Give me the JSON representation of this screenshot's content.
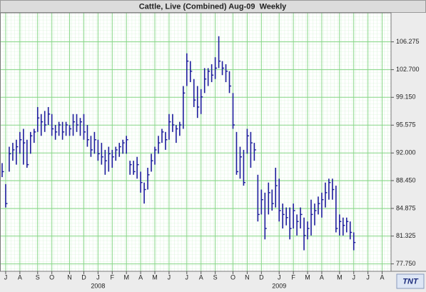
{
  "chart_data": {
    "type": "ohlc",
    "title": "Cattle, Live (Combined) Aug-09  Weekly",
    "logo": "TNT",
    "color": "#1c1c9c",
    "grid": true,
    "ylim": [
      76.8,
      110.0
    ],
    "yticks": [
      {
        "value": 77.75,
        "label": "77.750"
      },
      {
        "value": 81.325,
        "label": "81.325"
      },
      {
        "value": 84.875,
        "label": "84.875"
      },
      {
        "value": 88.45,
        "label": "88.450"
      },
      {
        "value": 92.0,
        "label": "92.000"
      },
      {
        "value": 95.575,
        "label": "95.575"
      },
      {
        "value": 99.15,
        "label": "99.150"
      },
      {
        "value": 102.7,
        "label": "102.700"
      },
      {
        "value": 106.275,
        "label": "106.275"
      }
    ],
    "year_labels": [
      "2008",
      "2009"
    ],
    "categories": [
      null,
      "J",
      null,
      null,
      null,
      "A",
      null,
      null,
      null,
      null,
      "S",
      null,
      null,
      null,
      "O",
      null,
      null,
      null,
      null,
      "N",
      null,
      null,
      null,
      "D",
      null,
      null,
      null,
      "J",
      null,
      null,
      null,
      "F",
      null,
      null,
      null,
      "M",
      null,
      null,
      null,
      "A",
      null,
      null,
      null,
      "M",
      null,
      null,
      null,
      "J",
      null,
      null,
      null,
      null,
      "J",
      null,
      null,
      null,
      "A",
      null,
      null,
      null,
      "S",
      null,
      null,
      null,
      null,
      "O",
      null,
      null,
      null,
      "N",
      null,
      null,
      null,
      "D",
      null,
      null,
      null,
      null,
      "J",
      null,
      null,
      null,
      "F",
      null,
      null,
      null,
      "M",
      null,
      null,
      null,
      "A",
      null,
      null,
      null,
      null,
      "M",
      null,
      null,
      null,
      "J",
      null,
      null,
      null,
      "J",
      null,
      null,
      null,
      "A",
      null,
      null
    ],
    "high": [
      90.7,
      88.0,
      92.8,
      93.3,
      93.7,
      94.7,
      95.1,
      93.7,
      94.7,
      95.1,
      97.9,
      97.0,
      97.4,
      97.9,
      97.0,
      95.6,
      96.0,
      96.0,
      96.0,
      95.6,
      97.0,
      97.0,
      96.5,
      97.0,
      95.6,
      94.2,
      94.7,
      93.7,
      93.3,
      92.4,
      92.8,
      92.4,
      92.8,
      93.3,
      93.7,
      94.2,
      91.0,
      91.0,
      91.5,
      89.6,
      88.2,
      90.1,
      91.9,
      92.8,
      94.2,
      95.1,
      94.7,
      97.0,
      97.0,
      95.6,
      96.0,
      100.6,
      104.8,
      103.8,
      101.5,
      100.6,
      100.2,
      102.9,
      102.9,
      103.4,
      104.3,
      107.0,
      103.8,
      103.4,
      102.5,
      99.7,
      94.7,
      92.8,
      92.4,
      95.1,
      94.7,
      93.3,
      89.2,
      87.3,
      86.9,
      88.2,
      87.3,
      90.1,
      88.7,
      85.5,
      85.0,
      85.0,
      85.5,
      84.1,
      85.0,
      83.7,
      83.2,
      86.0,
      85.5,
      86.4,
      86.9,
      88.2,
      88.7,
      88.7,
      87.8,
      84.1,
      83.7,
      83.7,
      83.2,
      81.8,
      null,
      null,
      null,
      null,
      null,
      null,
      null,
      null,
      null,
      null
    ],
    "low": [
      88.9,
      85.0,
      89.6,
      91.0,
      90.5,
      91.9,
      90.5,
      90.1,
      91.9,
      93.3,
      94.7,
      94.2,
      94.7,
      95.6,
      94.2,
      93.7,
      94.2,
      93.7,
      94.2,
      94.2,
      94.2,
      94.7,
      94.2,
      93.7,
      92.8,
      91.5,
      91.9,
      91.0,
      90.5,
      89.2,
      89.6,
      90.1,
      91.0,
      91.5,
      91.9,
      91.9,
      89.2,
      89.2,
      88.7,
      86.9,
      85.5,
      87.3,
      89.6,
      90.5,
      91.9,
      93.3,
      92.4,
      93.7,
      94.7,
      93.3,
      94.2,
      95.1,
      100.6,
      101.1,
      97.9,
      96.5,
      97.0,
      99.7,
      100.6,
      101.1,
      101.5,
      102.9,
      102.0,
      101.1,
      99.7,
      95.1,
      89.2,
      88.7,
      87.8,
      91.9,
      90.1,
      91.0,
      83.2,
      84.1,
      80.9,
      84.1,
      84.6,
      85.0,
      83.2,
      82.3,
      82.7,
      80.9,
      82.3,
      81.4,
      82.3,
      79.5,
      80.9,
      81.4,
      82.7,
      84.1,
      83.7,
      85.0,
      86.0,
      86.0,
      81.8,
      81.4,
      81.4,
      81.8,
      80.9,
      79.5,
      null,
      null,
      null,
      null,
      null,
      null,
      null,
      null,
      null,
      null
    ],
    "close": [
      89.6,
      85.5,
      91.9,
      92.4,
      92.8,
      93.7,
      93.3,
      90.5,
      94.2,
      94.7,
      96.5,
      96.0,
      95.6,
      97.0,
      95.1,
      94.7,
      95.6,
      94.7,
      95.6,
      95.1,
      96.0,
      95.6,
      96.0,
      94.7,
      93.7,
      92.4,
      93.7,
      91.9,
      91.5,
      91.0,
      91.9,
      91.5,
      92.4,
      92.8,
      93.3,
      93.7,
      90.5,
      89.6,
      90.5,
      88.2,
      87.3,
      89.2,
      91.0,
      92.4,
      93.3,
      94.7,
      93.7,
      96.0,
      95.6,
      95.1,
      95.6,
      99.7,
      103.8,
      102.5,
      98.8,
      97.9,
      99.2,
      101.5,
      102.5,
      102.0,
      102.9,
      103.8,
      102.9,
      102.5,
      100.6,
      95.6,
      89.6,
      91.5,
      88.2,
      94.2,
      93.3,
      92.4,
      84.1,
      86.0,
      82.3,
      86.9,
      85.5,
      87.8,
      84.6,
      84.1,
      83.7,
      82.3,
      84.6,
      83.2,
      84.1,
      81.4,
      82.3,
      84.1,
      84.6,
      85.5,
      86.0,
      86.9,
      88.2,
      87.3,
      82.3,
      83.2,
      82.7,
      83.2,
      81.8,
      80.5,
      null,
      null,
      null,
      null,
      null,
      null,
      null,
      null,
      null,
      null
    ]
  }
}
